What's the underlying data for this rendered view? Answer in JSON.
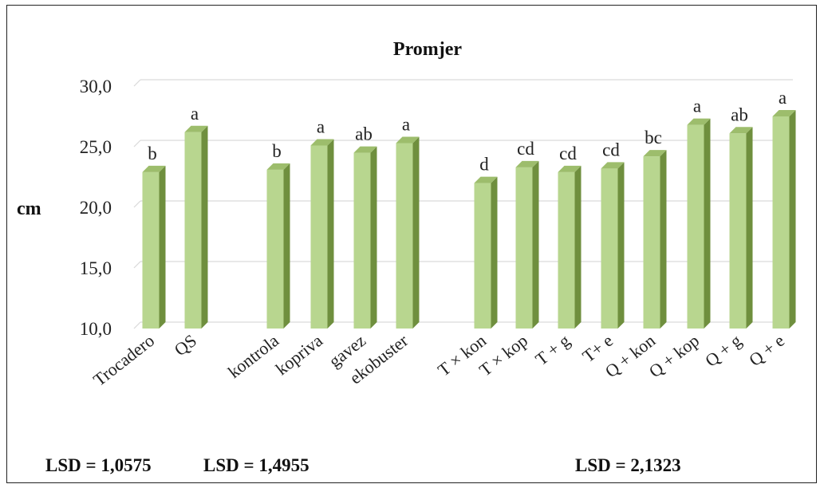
{
  "chart_data": {
    "type": "bar",
    "title": "Promjer",
    "ylabel": "cm",
    "xlabel": "",
    "ylim": [
      10,
      30
    ],
    "yticks": [
      "10,0",
      "15,0",
      "20,0",
      "25,0",
      "30,0"
    ],
    "grid": true,
    "legend": "none",
    "bar_color": "#b8d68f",
    "groups": [
      {
        "lsd": "LSD = 1,0575",
        "bars": [
          {
            "category": "Trocadero",
            "value": 22.9,
            "label": "b"
          },
          {
            "category": "QS",
            "value": 26.2,
            "label": "a"
          }
        ]
      },
      {
        "lsd": "LSD = 1,4955",
        "bars": [
          {
            "category": "kontrola",
            "value": 23.1,
            "label": "b"
          },
          {
            "category": "kopriva",
            "value": 25.1,
            "label": "a"
          },
          {
            "category": "gavez",
            "value": 24.5,
            "label": "ab"
          },
          {
            "category": "ekobuster",
            "value": 25.3,
            "label": "a"
          }
        ]
      },
      {
        "lsd": "LSD = 2,1323",
        "bars": [
          {
            "category": "T × kon",
            "value": 22.0,
            "label": "d"
          },
          {
            "category": "T × kop",
            "value": 23.3,
            "label": "cd"
          },
          {
            "category": "T + g",
            "value": 22.9,
            "label": "cd"
          },
          {
            "category": "T+ e",
            "value": 23.2,
            "label": "cd"
          },
          {
            "category": "Q + kon",
            "value": 24.2,
            "label": "bc"
          },
          {
            "category": "Q + kop",
            "value": 26.8,
            "label": "a"
          },
          {
            "category": "Q + g",
            "value": 26.1,
            "label": "ab"
          },
          {
            "category": "Q + e",
            "value": 27.5,
            "label": "a"
          }
        ]
      }
    ]
  }
}
